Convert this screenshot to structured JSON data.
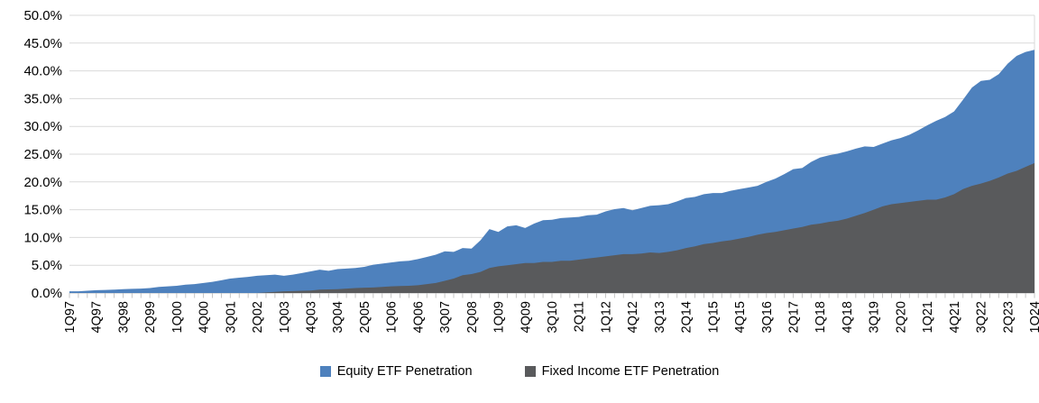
{
  "chart_data": {
    "type": "area",
    "title": "",
    "xlabel": "",
    "ylabel": "",
    "ylim": [
      0,
      50
    ],
    "y_tick_step": 5,
    "y_tick_decimals": 1,
    "y_tick_suffix": "%",
    "grid": "horizontal",
    "legend_position": "bottom",
    "overlay": true,
    "x_label_every": 3,
    "x": [
      "1Q97",
      "2Q97",
      "3Q97",
      "4Q97",
      "1Q98",
      "2Q98",
      "3Q98",
      "4Q98",
      "1Q99",
      "2Q99",
      "3Q99",
      "4Q99",
      "1Q00",
      "2Q00",
      "3Q00",
      "4Q00",
      "1Q01",
      "2Q01",
      "3Q01",
      "4Q01",
      "1Q02",
      "2Q02",
      "3Q02",
      "4Q02",
      "1Q03",
      "2Q03",
      "3Q03",
      "4Q03",
      "1Q04",
      "2Q04",
      "3Q04",
      "4Q04",
      "1Q05",
      "2Q05",
      "3Q05",
      "4Q05",
      "1Q06",
      "2Q06",
      "3Q06",
      "4Q06",
      "1Q07",
      "2Q07",
      "3Q07",
      "4Q07",
      "1Q08",
      "2Q08",
      "3Q08",
      "4Q08",
      "1Q09",
      "2Q09",
      "3Q09",
      "4Q09",
      "1Q10",
      "2Q10",
      "3Q10",
      "4Q10",
      "1Q11",
      "2Q11",
      "3Q11",
      "4Q11",
      "1Q12",
      "2Q12",
      "3Q12",
      "4Q12",
      "1Q13",
      "2Q13",
      "3Q13",
      "4Q13",
      "1Q14",
      "2Q14",
      "3Q14",
      "4Q14",
      "1Q15",
      "2Q15",
      "3Q15",
      "4Q15",
      "1Q16",
      "2Q16",
      "3Q16",
      "4Q16",
      "1Q17",
      "2Q17",
      "3Q17",
      "4Q17",
      "1Q18",
      "2Q18",
      "3Q18",
      "4Q18",
      "1Q19",
      "2Q19",
      "3Q19",
      "4Q19",
      "1Q20",
      "2Q20",
      "3Q20",
      "4Q20",
      "1Q21",
      "2Q21",
      "3Q21",
      "4Q21",
      "1Q22",
      "2Q22",
      "3Q22",
      "4Q22",
      "1Q23",
      "2Q23",
      "3Q23",
      "4Q23",
      "1Q24"
    ],
    "series": [
      {
        "name": "Equity ETF Penetration",
        "color": "#4E81BD",
        "values": [
          0.3,
          0.3,
          0.4,
          0.5,
          0.55,
          0.6,
          0.7,
          0.75,
          0.8,
          0.9,
          1.1,
          1.2,
          1.3,
          1.5,
          1.6,
          1.8,
          2.0,
          2.3,
          2.6,
          2.75,
          2.9,
          3.1,
          3.2,
          3.3,
          3.1,
          3.3,
          3.6,
          3.9,
          4.2,
          4.0,
          4.3,
          4.4,
          4.5,
          4.7,
          5.1,
          5.3,
          5.5,
          5.7,
          5.8,
          6.1,
          6.5,
          6.9,
          7.5,
          7.4,
          8.1,
          8.0,
          9.5,
          11.5,
          11.0,
          12.0,
          12.2,
          11.7,
          12.5,
          13.1,
          13.2,
          13.5,
          13.6,
          13.7,
          14.0,
          14.1,
          14.7,
          15.1,
          15.3,
          14.9,
          15.3,
          15.7,
          15.8,
          16.0,
          16.5,
          17.1,
          17.3,
          17.8,
          18.0,
          18.0,
          18.4,
          18.7,
          19.0,
          19.3,
          20.0,
          20.6,
          21.4,
          22.3,
          22.5,
          23.6,
          24.4,
          24.8,
          25.1,
          25.5,
          26.0,
          26.4,
          26.3,
          26.9,
          27.5,
          27.9,
          28.5,
          29.3,
          30.2,
          31.0,
          31.7,
          32.7,
          34.8,
          37.0,
          38.2,
          38.4,
          39.4,
          41.3,
          42.7,
          43.4,
          43.8
        ]
      },
      {
        "name": "Fixed Income ETF Penetration",
        "color": "#595A5C",
        "values": [
          0,
          0,
          0,
          0,
          0,
          0,
          0,
          0,
          0,
          0,
          0,
          0,
          0,
          0,
          0,
          0,
          0,
          0,
          0,
          0,
          0,
          0,
          0.1,
          0.2,
          0.3,
          0.35,
          0.4,
          0.45,
          0.6,
          0.65,
          0.7,
          0.8,
          0.9,
          0.95,
          1.0,
          1.1,
          1.2,
          1.25,
          1.3,
          1.4,
          1.6,
          1.8,
          2.2,
          2.6,
          3.2,
          3.4,
          3.8,
          4.5,
          4.8,
          5.0,
          5.2,
          5.4,
          5.4,
          5.6,
          5.6,
          5.8,
          5.8,
          6.0,
          6.2,
          6.4,
          6.6,
          6.8,
          7.0,
          7.0,
          7.1,
          7.3,
          7.2,
          7.4,
          7.7,
          8.1,
          8.4,
          8.8,
          9.0,
          9.3,
          9.5,
          9.8,
          10.1,
          10.5,
          10.8,
          11.0,
          11.3,
          11.6,
          11.9,
          12.3,
          12.5,
          12.8,
          13.0,
          13.4,
          13.9,
          14.4,
          15.0,
          15.6,
          16.0,
          16.2,
          16.4,
          16.6,
          16.8,
          16.8,
          17.2,
          17.8,
          18.7,
          19.3,
          19.7,
          20.2,
          20.8,
          21.5,
          22.0,
          22.7,
          23.4
        ]
      }
    ]
  },
  "legend": {
    "items": [
      {
        "label": "Equity ETF Penetration",
        "color": "#4E81BD"
      },
      {
        "label": "Fixed Income ETF Penetration",
        "color": "#595A5C"
      }
    ]
  },
  "colors": {
    "background": "#FFFFFF",
    "gridline": "#D9D9D9",
    "axis": "#BFBFBF",
    "text": "#000000"
  }
}
